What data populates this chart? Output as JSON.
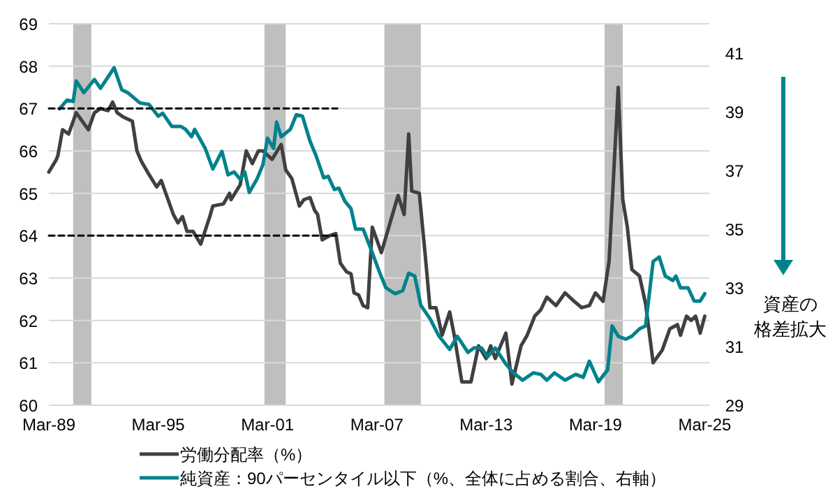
{
  "chart_data": {
    "type": "line",
    "xlim": [
      "1989-03",
      "2025-06"
    ],
    "xticks": [
      {
        "value": "1989-03",
        "label": "Mar-89"
      },
      {
        "value": "1995-03",
        "label": "Mar-95"
      },
      {
        "value": "2001-03",
        "label": "Mar-01"
      },
      {
        "value": "2007-03",
        "label": "Mar-07"
      },
      {
        "value": "2013-03",
        "label": "Mar-13"
      },
      {
        "value": "2019-03",
        "label": "Mar-19"
      },
      {
        "value": "2025-03",
        "label": "Mar-25"
      }
    ],
    "ylim": [
      60,
      69
    ],
    "yticks": [
      60,
      61,
      62,
      63,
      64,
      65,
      66,
      67,
      68,
      69
    ],
    "y2lim": [
      29,
      42
    ],
    "y2ticks": [
      29,
      31,
      33,
      35,
      37,
      39,
      41
    ],
    "grid": "y",
    "legend": "bottom",
    "bands": [
      {
        "axis": "x",
        "from": "1990-07",
        "to": "1991-07",
        "color": "#bfbfbf"
      },
      {
        "axis": "x",
        "from": "2001-01",
        "to": "2002-03",
        "color": "#bfbfbf"
      },
      {
        "axis": "x",
        "from": "2007-08",
        "to": "2009-08",
        "color": "#bfbfbf"
      },
      {
        "axis": "x",
        "from": "2019-09",
        "to": "2020-09",
        "color": "#bfbfbf"
      }
    ],
    "annotations": [
      "資産の格差拡大"
    ],
    "series": [
      {
        "name": "労働分配率（%）",
        "color": "#404040",
        "x": [
          "1989-03",
          "1989-08",
          "1989-09",
          "1989-12",
          "1990-04",
          "1990-09",
          "1991-01",
          "1991-05",
          "1991-09",
          "1992-01",
          "1992-06",
          "1992-09",
          "1992-12",
          "1993-04",
          "1993-07",
          "1993-10",
          "1994-01",
          "1994-04",
          "1994-08",
          "1995-02",
          "1995-05",
          "1995-09",
          "1996-01",
          "1996-04",
          "1996-07",
          "1996-10",
          "1997-02",
          "1997-07",
          "1998-01",
          "1998-03",
          "1998-10",
          "1999-02",
          "1999-03",
          "1999-09",
          "2000-01",
          "2000-05",
          "2000-09",
          "2000-12",
          "2001-06",
          "2001-12",
          "2002-03",
          "2002-07",
          "2002-12",
          "2003-03",
          "2003-07",
          "2003-10",
          "2003-12",
          "2004-03",
          "2004-08",
          "2004-12",
          "2005-03",
          "2005-07",
          "2005-10",
          "2005-12",
          "2006-03",
          "2006-06",
          "2006-09",
          "2006-12",
          "2007-06",
          "2008-05",
          "2008-09",
          "2008-12",
          "2009-02",
          "2009-07",
          "2009-11",
          "2010-02",
          "2010-06",
          "2010-10",
          "2011-03",
          "2011-06",
          "2011-11",
          "2012-05",
          "2012-10",
          "2013-03",
          "2013-06",
          "2013-09",
          "2014-04",
          "2014-08",
          "2015-02",
          "2015-06",
          "2015-11",
          "2016-03",
          "2016-07",
          "2017-01",
          "2017-07",
          "2018-01",
          "2018-06",
          "2018-11",
          "2019-03",
          "2019-08",
          "2019-12",
          "2020-06",
          "2020-09",
          "2020-12",
          "2021-03",
          "2021-08",
          "2021-12",
          "2022-05",
          "2022-11",
          "2023-04",
          "2023-09",
          "2023-11",
          "2024-03",
          "2024-06",
          "2024-09",
          "2024-12",
          "2025-03"
        ],
        "values": [
          65.5,
          65.8,
          65.9,
          66.5,
          66.4,
          66.9,
          66.7,
          66.5,
          66.9,
          67.0,
          66.95,
          67.15,
          66.9,
          66.8,
          66.75,
          66.7,
          66.0,
          65.75,
          65.5,
          65.15,
          65.3,
          64.9,
          64.5,
          64.3,
          64.45,
          64.1,
          64.1,
          63.8,
          64.45,
          64.7,
          64.75,
          65.0,
          64.85,
          65.2,
          66.0,
          65.7,
          66.0,
          66.0,
          65.8,
          66.15,
          65.55,
          65.35,
          64.7,
          64.85,
          64.9,
          64.6,
          64.5,
          63.9,
          64.0,
          64.05,
          63.35,
          63.15,
          63.1,
          62.65,
          62.6,
          62.35,
          62.3,
          64.2,
          63.6,
          64.95,
          64.5,
          66.4,
          65.05,
          65.0,
          63.5,
          62.3,
          62.3,
          61.65,
          62.2,
          61.65,
          60.55,
          60.55,
          61.4,
          61.1,
          61.4,
          61.1,
          61.7,
          60.5,
          61.4,
          61.65,
          62.1,
          62.25,
          62.55,
          62.35,
          62.65,
          62.45,
          62.3,
          62.35,
          62.65,
          62.45,
          63.4,
          67.5,
          64.85,
          64.2,
          63.2,
          63.05,
          62.4,
          61.0,
          61.3,
          61.8,
          61.9,
          61.65,
          62.1,
          62.0,
          62.1,
          61.7,
          62.1
        ]
      },
      {
        "name": "純資産：90パーセンタイル以下（%、全体に占める割合、右軸）",
        "color": "#00828c",
        "axis": "y2",
        "x": [
          "1989-10",
          "1990-03",
          "1990-07",
          "1990-09",
          "1991-02",
          "1991-09",
          "1992-01",
          "1992-10",
          "1993-03",
          "1993-07",
          "1994-03",
          "1994-09",
          "1995-03",
          "1995-06",
          "1995-12",
          "1996-06",
          "1996-09",
          "1997-01",
          "1997-03",
          "1997-10",
          "1998-03",
          "1998-09",
          "1999-01",
          "1999-05",
          "1999-09",
          "1999-12",
          "2000-03",
          "2000-08",
          "2000-12",
          "2001-03",
          "2001-07",
          "2001-09",
          "2001-12",
          "2002-06",
          "2002-10",
          "2003-02",
          "2003-07",
          "2003-11",
          "2004-04",
          "2004-07",
          "2004-11",
          "2005-02",
          "2005-06",
          "2005-10",
          "2006-01",
          "2006-06",
          "2006-12",
          "2007-05",
          "2007-09",
          "2008-03",
          "2008-08",
          "2008-12",
          "2009-04",
          "2009-05",
          "2009-08",
          "2010-02",
          "2010-08",
          "2011-03",
          "2011-08",
          "2012-03",
          "2012-07",
          "2012-12",
          "2013-04",
          "2013-09",
          "2014-04",
          "2014-09",
          "2015-03",
          "2015-10",
          "2016-03",
          "2016-07",
          "2016-12",
          "2017-07",
          "2018-02",
          "2018-07",
          "2018-11",
          "2019-05",
          "2019-11",
          "2020-02",
          "2020-06",
          "2020-11",
          "2021-03",
          "2021-08",
          "2021-12",
          "2022-05",
          "2022-09",
          "2023-01",
          "2023-06",
          "2023-08",
          "2023-11",
          "2024-04",
          "2024-08",
          "2024-12",
          "2025-03"
        ],
        "values": [
          39.1,
          39.4,
          39.35,
          40.05,
          39.65,
          40.1,
          39.8,
          40.5,
          39.75,
          39.65,
          39.3,
          39.25,
          38.85,
          38.95,
          38.5,
          38.5,
          38.4,
          38.15,
          38.4,
          37.75,
          37.05,
          37.65,
          36.85,
          36.95,
          36.7,
          36.95,
          36.25,
          36.7,
          37.2,
          38.1,
          37.75,
          38.65,
          38.15,
          38.4,
          38.9,
          38.85,
          38.0,
          37.5,
          36.75,
          36.8,
          36.35,
          36.4,
          35.95,
          35.7,
          35.0,
          35.0,
          34.2,
          33.5,
          33.0,
          32.8,
          32.9,
          33.5,
          33.4,
          33.15,
          32.4,
          31.95,
          31.35,
          30.9,
          31.35,
          30.8,
          30.95,
          30.95,
          30.65,
          30.95,
          30.4,
          30.1,
          29.85,
          30.1,
          30.05,
          29.85,
          30.1,
          29.85,
          30.05,
          29.95,
          30.5,
          29.8,
          30.2,
          31.7,
          31.35,
          31.25,
          31.35,
          31.6,
          31.7,
          33.9,
          34.05,
          33.4,
          33.25,
          33.4,
          33.0,
          33.0,
          32.55,
          32.55,
          32.8
        ]
      },
      {
        "color": "#000000",
        "line_style": "dashed",
        "x": [
          "1989-03",
          "2005-01"
        ],
        "values": [
          67,
          67
        ]
      },
      {
        "color": "#000000",
        "line_style": "dashed",
        "x": [
          "1989-03",
          "2004-12"
        ],
        "values": [
          64,
          64
        ]
      }
    ]
  }
}
